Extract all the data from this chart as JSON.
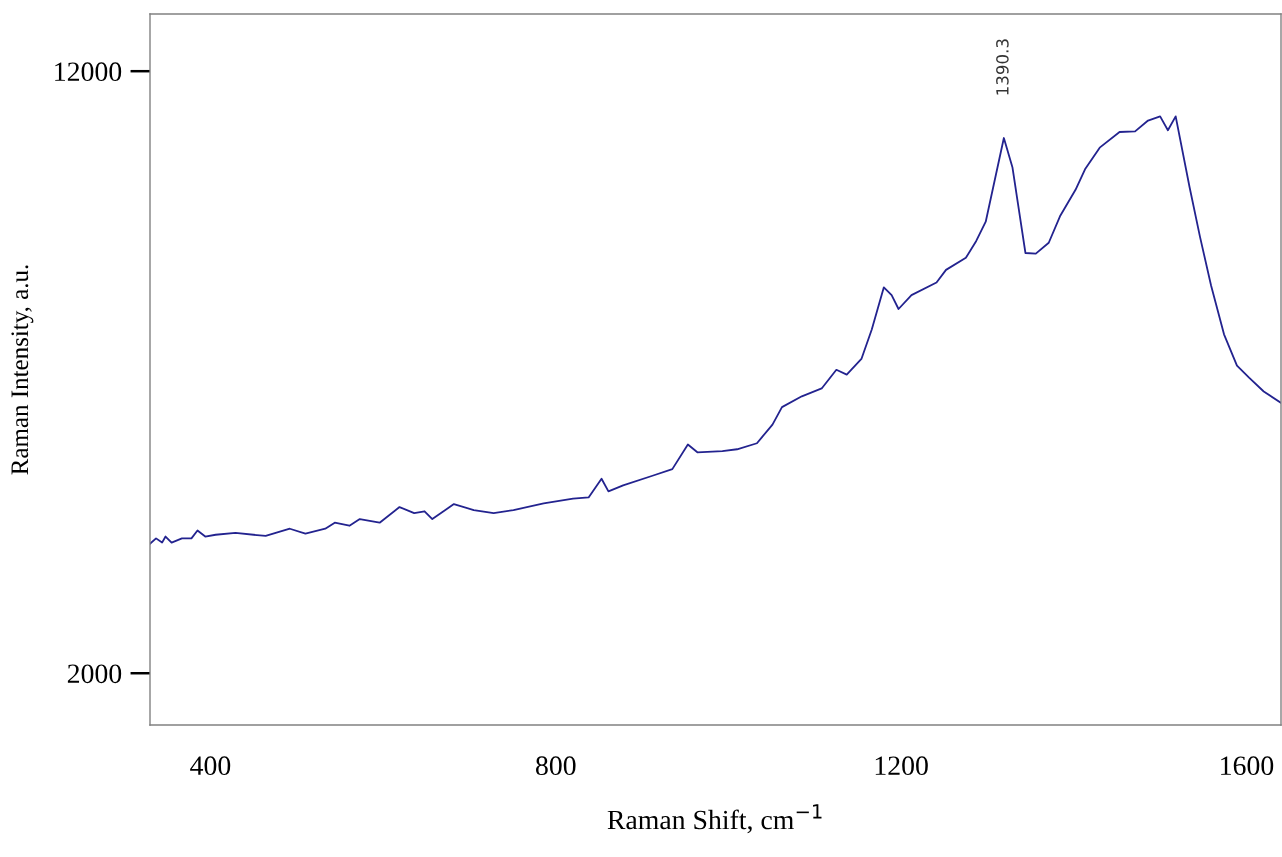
{
  "chart_data": {
    "type": "line",
    "xlabel": "Raman Shift, cm$^{−1}$",
    "ylabel": "Raman Intensity, a.u.",
    "xlim": [
      330,
      1640
    ],
    "xticks": [
      400,
      800,
      1200,
      1600
    ],
    "ylim": [
      1140,
      12950
    ],
    "yticks": [
      2000,
      12000
    ],
    "grid": false,
    "legend": false,
    "marker": "none",
    "line_style": "solid",
    "annotations": [
      "1390.3"
    ],
    "series": [
      {
        "color": "#23238f",
        "x": [
          330,
          337,
          344,
          348,
          355,
          367,
          378,
          385,
          394,
          406,
          429,
          464,
          492,
          510,
          533,
          544,
          561,
          573,
          596,
          619,
          636,
          648,
          657,
          682,
          705,
          728,
          751,
          786,
          820,
          838,
          853,
          861,
          878,
          912,
          935,
          953,
          964,
          993,
          1010,
          1033,
          1051,
          1062,
          1085,
          1108,
          1125,
          1137,
          1154,
          1166,
          1180,
          1189,
          1197,
          1212,
          1241,
          1252,
          1275,
          1287,
          1298,
          1319,
          1329,
          1344,
          1356,
          1371,
          1384,
          1402,
          1413,
          1430,
          1453,
          1471,
          1486,
          1500,
          1509,
          1518,
          1534,
          1546,
          1559,
          1574,
          1589,
          1603,
          1620,
          1640
        ],
        "values": [
          4150,
          4240,
          4170,
          4270,
          4170,
          4240,
          4240,
          4370,
          4270,
          4300,
          4330,
          4280,
          4400,
          4320,
          4400,
          4500,
          4450,
          4560,
          4500,
          4760,
          4660,
          4690,
          4560,
          4810,
          4710,
          4660,
          4710,
          4820,
          4900,
          4920,
          5230,
          5020,
          5120,
          5280,
          5390,
          5800,
          5670,
          5690,
          5720,
          5820,
          6130,
          6420,
          6600,
          6730,
          7040,
          6960,
          7220,
          7710,
          8410,
          8280,
          8050,
          8280,
          8490,
          8700,
          8900,
          9180,
          9500,
          10890,
          10400,
          8980,
          8970,
          9150,
          9590,
          10030,
          10370,
          10730,
          10990,
          11000,
          11180,
          11250,
          11020,
          11250,
          10080,
          9260,
          8440,
          7630,
          7110,
          6910,
          6680,
          6490
        ]
      }
    ]
  }
}
